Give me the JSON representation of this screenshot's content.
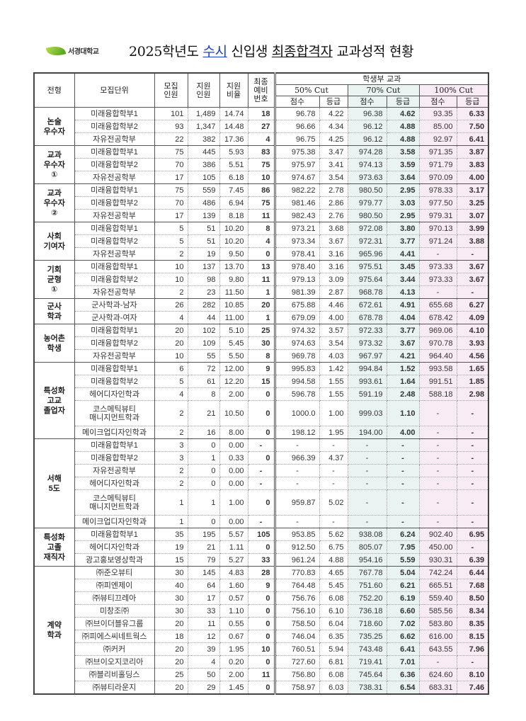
{
  "logo": {
    "text": "서경대학교"
  },
  "title": {
    "part1": "2025학년도 ",
    "part2": "수시",
    "part3": " 신입생 ",
    "part4": "최종합격자",
    "part5": " 교과성적 현황"
  },
  "colors": {
    "cut70_bg": "#e9f3f2",
    "cut100_bg": "#f9ebf3",
    "title_accent": "#1a3fd0"
  },
  "header": {
    "type": "전형",
    "unit": "모집단위",
    "quota": "모집 인원",
    "applicants": "지원 인원",
    "ratio": "지원 비율",
    "waitlist": "최종 예비 번호",
    "group": "학생부 교과",
    "cut50": "50% Cut",
    "cut70": "70% Cut",
    "cut100": "100% Cut",
    "score": "점수",
    "grade": "등급"
  },
  "groups": [
    {
      "label": "논술\n우수자",
      "rows": [
        [
          "미래융합학부1",
          "101",
          "1,489",
          "14.74",
          "18",
          "96.78",
          "4.22",
          "96.38",
          "4.62",
          "93.35",
          "6.33"
        ],
        [
          "미래융합학부2",
          "93",
          "1,347",
          "14.48",
          "27",
          "96.66",
          "4.34",
          "96.12",
          "4.88",
          "85.00",
          "7.50"
        ],
        [
          "자유전공학부",
          "22",
          "382",
          "17.36",
          "4",
          "96.75",
          "4.25",
          "96.12",
          "4.88",
          "92.97",
          "6.41"
        ]
      ]
    },
    {
      "label": "교과\n우수자\n①",
      "rows": [
        [
          "미래융합학부1",
          "75",
          "445",
          "5.93",
          "83",
          "975.38",
          "3.47",
          "974.28",
          "3.58",
          "971.35",
          "3.87"
        ],
        [
          "미래융합학부2",
          "70",
          "386",
          "5.51",
          "75",
          "975.97",
          "3.41",
          "974.13",
          "3.59",
          "971.79",
          "3.83"
        ],
        [
          "자유전공학부",
          "17",
          "105",
          "6.18",
          "10",
          "974.67",
          "3.54",
          "973.63",
          "3.64",
          "970.09",
          "4.00"
        ]
      ]
    },
    {
      "label": "교과\n우수자\n②",
      "rows": [
        [
          "미래융합학부1",
          "75",
          "559",
          "7.45",
          "86",
          "982.22",
          "2.78",
          "980.50",
          "2.95",
          "978.33",
          "3.17"
        ],
        [
          "미래융합학부2",
          "70",
          "486",
          "6.94",
          "75",
          "981.46",
          "2.86",
          "979.77",
          "3.03",
          "977.50",
          "3.25"
        ],
        [
          "자유전공학부",
          "17",
          "139",
          "8.18",
          "11",
          "982.43",
          "2.76",
          "980.50",
          "2.95",
          "979.31",
          "3.07"
        ]
      ]
    },
    {
      "label": "사회\n기여자",
      "rows": [
        [
          "미래융합학부1",
          "5",
          "51",
          "10.20",
          "8",
          "973.21",
          "3.68",
          "972.08",
          "3.80",
          "970.13",
          "3.99"
        ],
        [
          "미래융합학부2",
          "5",
          "51",
          "10.20",
          "4",
          "973.34",
          "3.67",
          "972.31",
          "3.77",
          "971.24",
          "3.88"
        ],
        [
          "자유전공학부",
          "2",
          "19",
          "9.50",
          "0",
          "978.41",
          "3.16",
          "965.96",
          "4.41",
          "-",
          "-"
        ]
      ]
    },
    {
      "label": "기회\n균형\n①",
      "rows": [
        [
          "미래융합학부1",
          "10",
          "137",
          "13.70",
          "13",
          "978.40",
          "3.16",
          "975.51",
          "3.45",
          "973.33",
          "3.67"
        ],
        [
          "미래융합학부2",
          "10",
          "98",
          "9.80",
          "11",
          "979.13",
          "3.09",
          "975.64",
          "3.44",
          "973.33",
          "3.67"
        ],
        [
          "자유전공학부",
          "2",
          "23",
          "11.50",
          "1",
          "981.39",
          "2.87",
          "968.78",
          "4.13",
          "-",
          "-"
        ]
      ]
    },
    {
      "label": "군사\n학과",
      "rows": [
        [
          "군사학과-남자",
          "26",
          "282",
          "10.85",
          "20",
          "675.88",
          "4.46",
          "672.61",
          "4.91",
          "655.68",
          "6.27"
        ],
        [
          "군사학과-여자",
          "4",
          "44",
          "11.00",
          "1",
          "679.09",
          "4.00",
          "678.78",
          "4.04",
          "678.42",
          "4.09"
        ]
      ]
    },
    {
      "label": "농어촌\n학생",
      "rows": [
        [
          "미래융합학부1",
          "20",
          "102",
          "5.10",
          "25",
          "974.32",
          "3.57",
          "972.33",
          "3.77",
          "969.06",
          "4.10"
        ],
        [
          "미래융합학부2",
          "20",
          "109",
          "5.45",
          "30",
          "974.63",
          "3.54",
          "973.32",
          "3.67",
          "970.78",
          "3.93"
        ],
        [
          "자유전공학부",
          "10",
          "55",
          "5.50",
          "8",
          "969.78",
          "4.03",
          "967.97",
          "4.21",
          "964.40",
          "4.56"
        ]
      ]
    },
    {
      "label": "특성화\n고교\n졸업자",
      "rows": [
        [
          "미래융합학부1",
          "6",
          "72",
          "12.00",
          "9",
          "995.83",
          "1.42",
          "994.84",
          "1.52",
          "993.58",
          "1.65"
        ],
        [
          "미래융합학부2",
          "5",
          "61",
          "12.20",
          "15",
          "994.58",
          "1.55",
          "993.61",
          "1.64",
          "991.51",
          "1.85"
        ],
        [
          "헤어디자인학과",
          "4",
          "8",
          "2.00",
          "0",
          "596.78",
          "1.55",
          "591.19",
          "2.48",
          "588.18",
          "2.98"
        ],
        [
          "코스메틱뷰티\n매니지먼트학과",
          "2",
          "21",
          "10.50",
          "0",
          "1000.0",
          "1.00",
          "999.03",
          "1.10",
          "-",
          "-"
        ],
        [
          "메이크업디자인학과",
          "2",
          "16",
          "8.00",
          "0",
          "198.12",
          "1.95",
          "194.00",
          "4.00",
          "-",
          "-"
        ]
      ]
    },
    {
      "label": "서해\n5도",
      "rows": [
        [
          "미래융합학부1",
          "3",
          "0",
          "0.00",
          "-",
          "-",
          "-",
          "-",
          "-",
          "-",
          "-"
        ],
        [
          "미래융합학부2",
          "3",
          "1",
          "0.33",
          "0",
          "966.39",
          "4.37",
          "-",
          "-",
          "-",
          "-"
        ],
        [
          "자유전공학부",
          "2",
          "0",
          "0.00",
          "-",
          "-",
          "-",
          "-",
          "-",
          "-",
          "-"
        ],
        [
          "헤어디자인학과",
          "2",
          "0",
          "0.00",
          "-",
          "-",
          "-",
          "-",
          "-",
          "-",
          "-"
        ],
        [
          "코스메틱뷰티\n매니지먼트학과",
          "1",
          "1",
          "1.00",
          "0",
          "959.87",
          "5.02",
          "-",
          "-",
          "-",
          "-"
        ],
        [
          "메이크업디자인학과",
          "1",
          "0",
          "0.00",
          "-",
          "-",
          "-",
          "-",
          "-",
          "-",
          "-"
        ]
      ]
    },
    {
      "label": "특성화\n고졸\n재직자",
      "rows": [
        [
          "미래융합학부1",
          "35",
          "195",
          "5.57",
          "105",
          "953.85",
          "5.62",
          "938.08",
          "6.24",
          "902.40",
          "6.95"
        ],
        [
          "헤어디자인학과",
          "19",
          "21",
          "1.11",
          "0",
          "912.50",
          "6.75",
          "805.07",
          "7.95",
          "450.00",
          "-"
        ],
        [
          "광고홍보영상학과",
          "15",
          "79",
          "5.27",
          "33",
          "961.24",
          "4.88",
          "954.16",
          "5.59",
          "930.31",
          "6.39"
        ]
      ]
    },
    {
      "label": "계약\n학과",
      "rows": [
        [
          "㈜준오뷰티",
          "30",
          "145",
          "4.83",
          "28",
          "770.83",
          "4.65",
          "767.78",
          "5.04",
          "742.24",
          "6.44"
        ],
        [
          "㈜피엔제이",
          "40",
          "64",
          "1.60",
          "9",
          "764.48",
          "5.45",
          "751.60",
          "6.21",
          "665.51",
          "7.68"
        ],
        [
          "㈜뷰티끄레아",
          "30",
          "17",
          "0.57",
          "0",
          "756.76",
          "6.08",
          "752.20",
          "6.19",
          "559.40",
          "8.50"
        ],
        [
          "미창조㈜",
          "30",
          "33",
          "1.10",
          "0",
          "756.10",
          "6.10",
          "736.18",
          "6.60",
          "585.56",
          "8.34"
        ],
        [
          "㈜브이더블유그룹",
          "20",
          "11",
          "0.55",
          "0",
          "758.50",
          "6.04",
          "718.60",
          "7.02",
          "583.80",
          "8.35"
        ],
        [
          "㈜피에스씨네트웍스",
          "18",
          "12",
          "0.67",
          "0",
          "746.04",
          "6.35",
          "735.25",
          "6.62",
          "616.00",
          "8.15"
        ],
        [
          "㈜커커",
          "20",
          "39",
          "1.95",
          "10",
          "760.51",
          "5.94",
          "743.48",
          "6.41",
          "643.55",
          "7.96"
        ],
        [
          "㈜브이오지코리아",
          "20",
          "4",
          "0.20",
          "0",
          "727.60",
          "6.81",
          "719.41",
          "7.01",
          "-",
          "-"
        ],
        [
          "㈜블리비홀딩스",
          "25",
          "50",
          "2.00",
          "11",
          "756.80",
          "6.08",
          "745.64",
          "6.36",
          "624.60",
          "8.10"
        ],
        [
          "㈜뷰티라운지",
          "20",
          "29",
          "1.45",
          "0",
          "758.97",
          "6.03",
          "738.31",
          "6.54",
          "683.31",
          "7.46"
        ]
      ]
    }
  ]
}
